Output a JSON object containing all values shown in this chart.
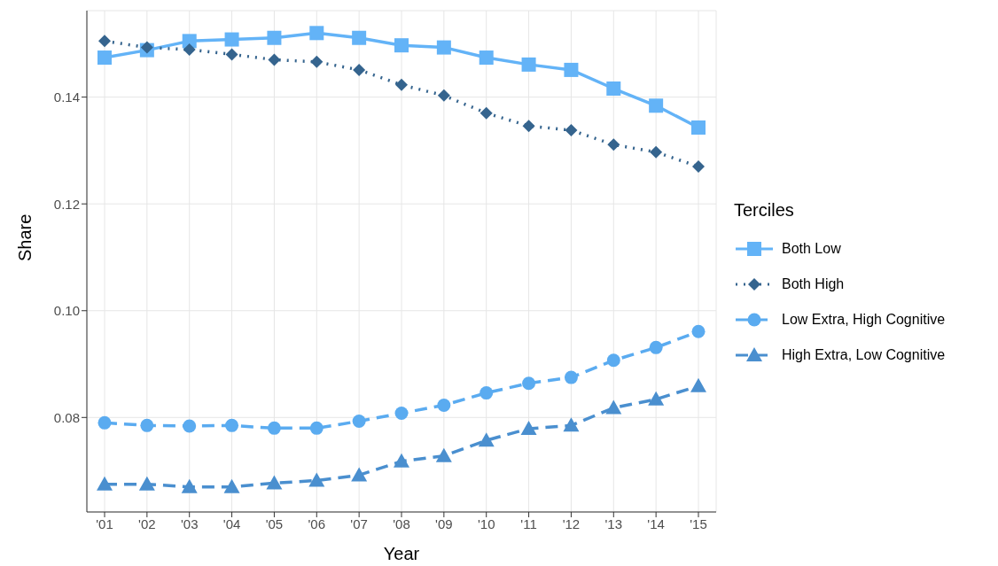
{
  "chart_data": {
    "type": "line",
    "xlabel": "Year",
    "ylabel": "Share",
    "legend_title": "Terciles",
    "legend": "right",
    "grid": true,
    "categories": [
      "'01",
      "'02",
      "'03",
      "'04",
      "'05",
      "'06",
      "'07",
      "'08",
      "'09",
      "'10",
      "'11",
      "'12",
      "'13",
      "'14",
      "'15"
    ],
    "ylim": [
      0.0623,
      0.1562
    ],
    "yticks": [
      {
        "value": 0.08,
        "label": "0.08"
      },
      {
        "value": 0.1,
        "label": "0.10"
      },
      {
        "value": 0.12,
        "label": "0.12"
      },
      {
        "value": 0.14,
        "label": "0.14"
      }
    ],
    "series": [
      {
        "name": "Both Low",
        "color": "#63b3f7",
        "marker": "square",
        "line_style": "solid",
        "values": [
          0.1474,
          0.1488,
          0.1505,
          0.1508,
          0.1511,
          0.152,
          0.1511,
          0.1497,
          0.1493,
          0.1474,
          0.1461,
          0.1451,
          0.1416,
          0.1384,
          0.1343
        ]
      },
      {
        "name": "Both High",
        "color": "#35648e",
        "marker": "diamond",
        "line_style": "dotted",
        "values": [
          0.1505,
          0.1493,
          0.1489,
          0.148,
          0.147,
          0.1466,
          0.1451,
          0.1423,
          0.1403,
          0.137,
          0.1346,
          0.1338,
          0.1311,
          0.1297,
          0.127
        ]
      },
      {
        "name": "Low Extra, High Cognitive",
        "color": "#5aabf0",
        "marker": "circle",
        "line_style": "dashed",
        "values": [
          0.079,
          0.0785,
          0.0784,
          0.0785,
          0.078,
          0.078,
          0.0793,
          0.0808,
          0.0823,
          0.0846,
          0.0864,
          0.0875,
          0.0907,
          0.0931,
          0.0961
        ]
      },
      {
        "name": "High Extra, Low Cognitive",
        "color": "#4a8fcf",
        "marker": "triangle",
        "line_style": "dashed",
        "values": [
          0.0675,
          0.0675,
          0.067,
          0.067,
          0.0677,
          0.0682,
          0.0692,
          0.0718,
          0.0728,
          0.0757,
          0.0779,
          0.0785,
          0.0818,
          0.0834,
          0.0859
        ]
      }
    ]
  }
}
